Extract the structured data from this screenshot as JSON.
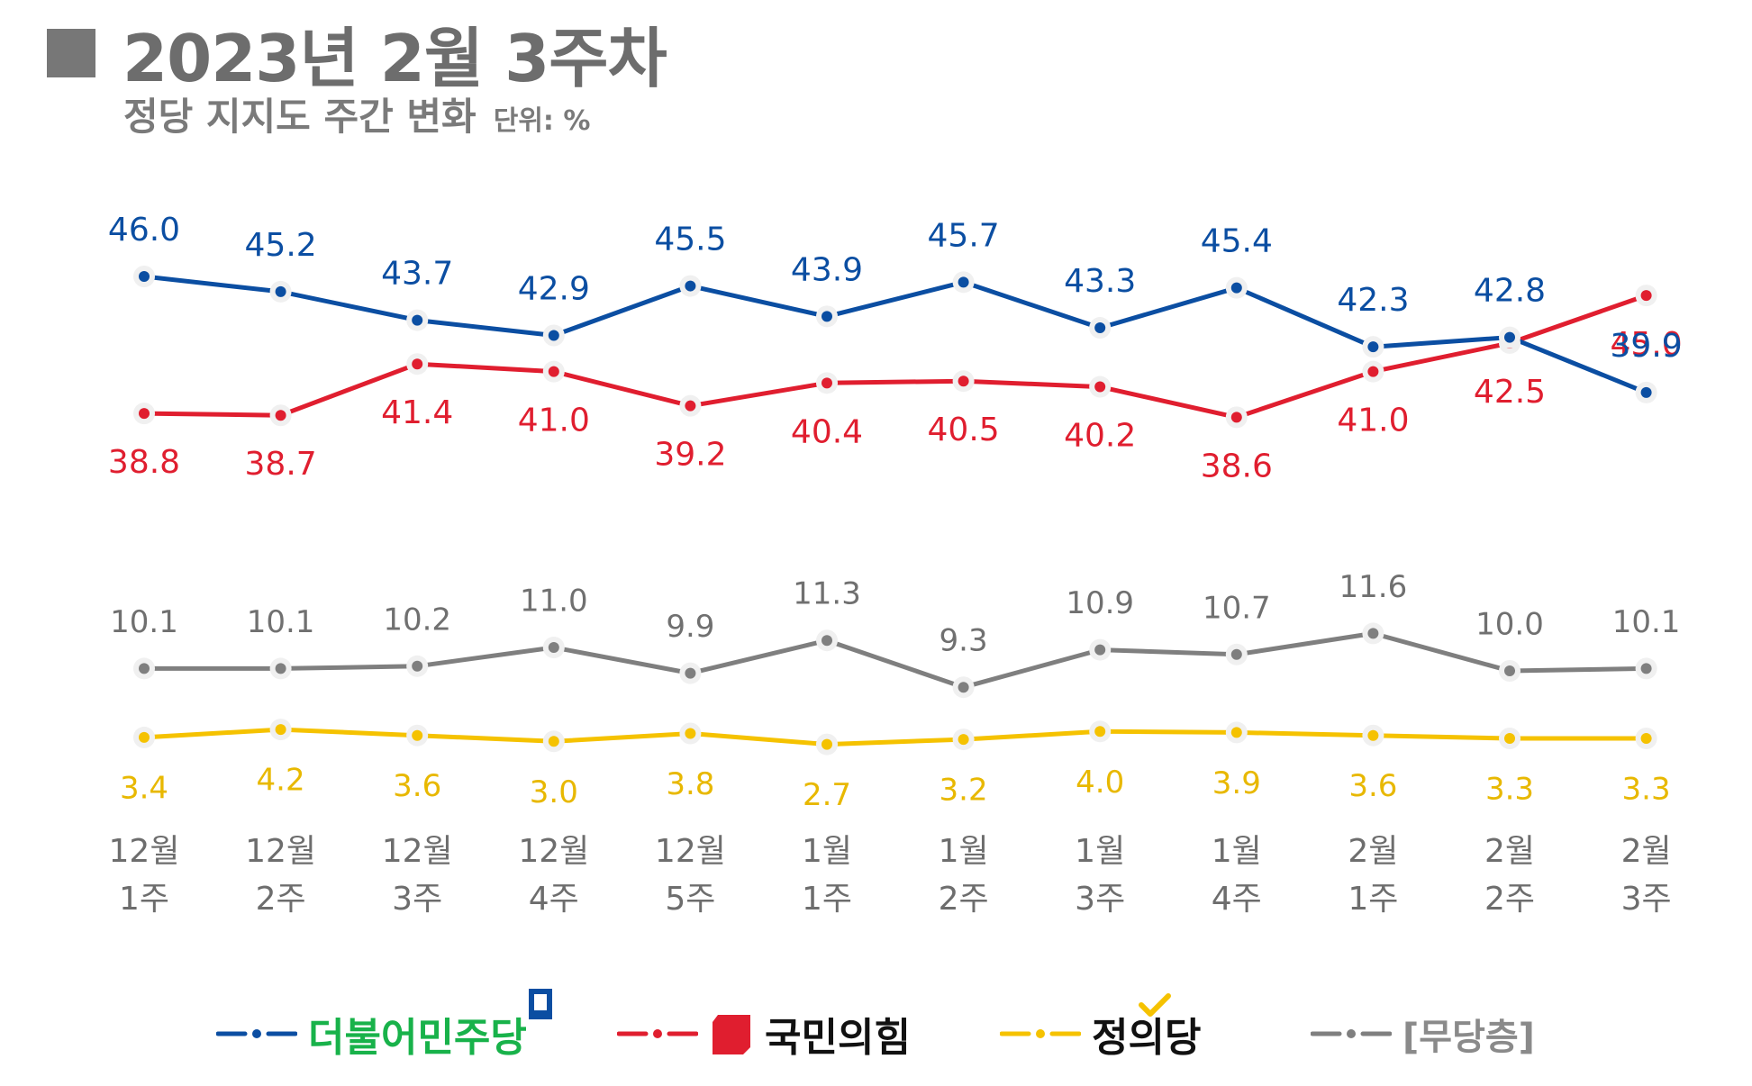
{
  "header": {
    "title": "2023년 2월 3주차",
    "subtitle": "정당 지지도 주간 변화",
    "unit": "단위: %"
  },
  "colors": {
    "democratic": "#0b4ea2",
    "ppp": "#e01e2f",
    "independent": "#7f7f7f",
    "justice": "#f5c200",
    "text_gray": "#6d6d6d"
  },
  "chart_data": {
    "type": "line",
    "title": "정당 지지도 주간 변화",
    "unit": "%",
    "categories": [
      [
        "12월",
        "1주"
      ],
      [
        "12월",
        "2주"
      ],
      [
        "12월",
        "3주"
      ],
      [
        "12월",
        "4주"
      ],
      [
        "12월",
        "5주"
      ],
      [
        "1월",
        "1주"
      ],
      [
        "1월",
        "2주"
      ],
      [
        "1월",
        "3주"
      ],
      [
        "1월",
        "4주"
      ],
      [
        "2월",
        "1주"
      ],
      [
        "2월",
        "2주"
      ],
      [
        "2월",
        "3주"
      ]
    ],
    "series": [
      {
        "key": "democratic",
        "name": "더불어민주당",
        "color": "#0b4ea2",
        "values": [
          46.0,
          45.2,
          43.7,
          42.9,
          45.5,
          43.9,
          45.7,
          43.3,
          45.4,
          42.3,
          42.8,
          39.9
        ]
      },
      {
        "key": "ppp",
        "name": "국민의힘",
        "color": "#e01e2f",
        "values": [
          38.8,
          38.7,
          41.4,
          41.0,
          39.2,
          40.4,
          40.5,
          40.2,
          38.6,
          41.0,
          42.5,
          45.0
        ]
      },
      {
        "key": "independent",
        "name": "[무당층]",
        "color": "#7f7f7f",
        "values": [
          10.1,
          10.1,
          10.2,
          11.0,
          9.9,
          11.3,
          9.3,
          10.9,
          10.7,
          11.6,
          10.0,
          10.1
        ]
      },
      {
        "key": "justice",
        "name": "정의당",
        "color": "#f5c200",
        "values": [
          3.4,
          4.2,
          3.6,
          3.0,
          3.8,
          2.7,
          3.2,
          4.0,
          3.9,
          3.6,
          3.3,
          3.3
        ]
      }
    ],
    "legend": [
      "더불어민주당",
      "국민의힘",
      "정의당",
      "[무당층]"
    ],
    "legend_position": "bottom",
    "grid": false,
    "xlabel": "",
    "ylabel": ""
  }
}
